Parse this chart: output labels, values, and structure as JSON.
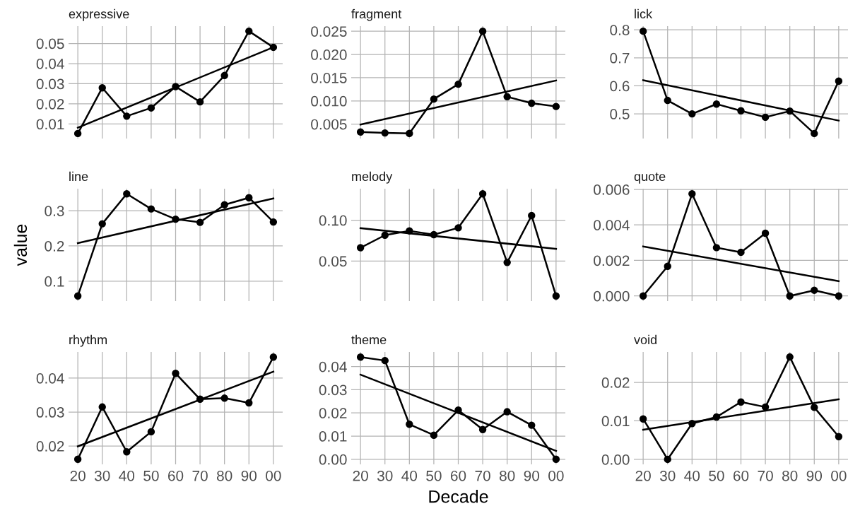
{
  "chart_data": [
    {
      "type": "line",
      "title": "expressive",
      "categories": [
        "20",
        "30",
        "40",
        "50",
        "60",
        "70",
        "80",
        "90",
        "00"
      ],
      "tick_labels": "y",
      "grid": true,
      "ylim": [
        0.0028,
        0.0586
      ],
      "yticks": [
        0.01,
        0.02,
        0.03,
        0.04,
        0.05
      ],
      "series": [
        {
          "color": "#000000",
          "marker": "circle",
          "values": [
            0.0053,
            0.028,
            0.0139,
            0.018,
            0.0286,
            0.021,
            0.0341,
            0.0561,
            0.0481
          ]
        },
        {
          "color": "#000000",
          "marker": "none",
          "x": [
            "20",
            "00"
          ],
          "values": [
            0.0082,
            0.0481
          ]
        }
      ]
    },
    {
      "type": "line",
      "title": "fragment",
      "categories": [
        "20",
        "30",
        "40",
        "50",
        "60",
        "70",
        "80",
        "90",
        "00"
      ],
      "tick_labels": "y",
      "grid": true,
      "ylim": [
        0.0019,
        0.0261
      ],
      "yticks": [
        0.005,
        {
          "value": 0.01,
          "label": "0.010"
        },
        0.015,
        {
          "value": 0.02,
          "label": "0.020"
        },
        0.025
      ],
      "series": [
        {
          "color": "#000000",
          "marker": "circle",
          "values": [
            0.0033,
            0.0031,
            0.003,
            0.0104,
            0.0136,
            0.025,
            0.0109,
            0.0095,
            0.0088
          ]
        },
        {
          "color": "#000000",
          "marker": "none",
          "x": [
            "20",
            "00"
          ],
          "values": [
            0.0049,
            0.0144
          ]
        }
      ]
    },
    {
      "type": "line",
      "title": "lick",
      "categories": [
        "20",
        "30",
        "40",
        "50",
        "60",
        "70",
        "80",
        "90",
        "00"
      ],
      "tick_labels": "y",
      "grid": true,
      "ylim": [
        0.412,
        0.813
      ],
      "yticks": [
        0.5,
        0.6,
        0.7,
        0.8
      ],
      "series": [
        {
          "color": "#000000",
          "marker": "circle",
          "values": [
            0.795,
            0.548,
            0.5,
            0.535,
            0.511,
            0.488,
            0.51,
            0.43,
            0.617
          ]
        },
        {
          "color": "#000000",
          "marker": "none",
          "x": [
            "20",
            "00"
          ],
          "values": [
            0.62,
            0.476
          ]
        }
      ]
    },
    {
      "type": "line",
      "title": "line",
      "ylabel": "value",
      "categories": [
        "20",
        "30",
        "40",
        "50",
        "60",
        "70",
        "80",
        "90",
        "00"
      ],
      "tick_labels": "y",
      "grid": true,
      "ylim": [
        0.0435,
        0.3625
      ],
      "yticks": [
        0.1,
        0.2,
        0.3
      ],
      "series": [
        {
          "color": "#000000",
          "marker": "circle",
          "values": [
            0.058,
            0.263,
            0.348,
            0.305,
            0.276,
            0.267,
            0.317,
            0.337,
            0.268
          ]
        },
        {
          "color": "#000000",
          "marker": "none",
          "x": [
            "20",
            "00"
          ],
          "values": [
            0.208,
            0.335
          ]
        }
      ]
    },
    {
      "type": "line",
      "title": "melody",
      "categories": [
        "20",
        "30",
        "40",
        "50",
        "60",
        "70",
        "80",
        "90",
        "00"
      ],
      "tick_labels": "y",
      "grid": true,
      "ylim": [
        0.001,
        0.1386
      ],
      "yticks": [
        0.05,
        {
          "value": 0.1,
          "label": "0.10"
        }
      ],
      "series": [
        {
          "color": "#000000",
          "marker": "circle",
          "values": [
            0.0663,
            0.0817,
            0.087,
            0.0823,
            0.0907,
            0.1323,
            0.0483,
            0.1057,
            0.0073
          ]
        },
        {
          "color": "#000000",
          "marker": "none",
          "x": [
            "20",
            "00"
          ],
          "values": [
            0.0903,
            0.065
          ]
        }
      ]
    },
    {
      "type": "line",
      "title": "quote",
      "categories": [
        "20",
        "30",
        "40",
        "50",
        "60",
        "70",
        "80",
        "90",
        "00"
      ],
      "tick_labels": "y",
      "grid": true,
      "ylim": [
        -0.00029,
        0.00604
      ],
      "yticks": [
        {
          "value": 0,
          "label": "0.000"
        },
        0.002,
        0.004,
        0.006
      ],
      "series": [
        {
          "color": "#000000",
          "marker": "circle",
          "values": [
            0,
            0.00167,
            0.00575,
            0.00272,
            0.00246,
            0.00353,
            0,
            0.00032,
            0
          ]
        },
        {
          "color": "#000000",
          "marker": "none",
          "x": [
            "20",
            "00"
          ],
          "values": [
            0.00279,
            0.00083
          ]
        }
      ]
    },
    {
      "type": "line",
      "title": "rhythm",
      "categories": [
        "20",
        "30",
        "40",
        "50",
        "60",
        "70",
        "80",
        "90",
        "00"
      ],
      "grid": true,
      "ylim": [
        0.0146,
        0.0477
      ],
      "yticks": [
        0.02,
        0.03,
        0.04
      ],
      "series": [
        {
          "color": "#000000",
          "marker": "circle",
          "values": [
            0.0161,
            0.0315,
            0.0183,
            0.0242,
            0.0414,
            0.0338,
            0.0341,
            0.0327,
            0.0462
          ]
        },
        {
          "color": "#000000",
          "marker": "none",
          "x": [
            "20",
            "00"
          ],
          "values": [
            0.0199,
            0.0419
          ]
        }
      ]
    },
    {
      "type": "line",
      "title": "theme",
      "xlabel": "Decade",
      "categories": [
        "20",
        "30",
        "40",
        "50",
        "60",
        "70",
        "80",
        "90",
        "00"
      ],
      "grid": true,
      "ylim": [
        -0.0022,
        0.0463
      ],
      "yticks": [
        {
          "value": 0,
          "label": "0.00"
        },
        0.01,
        0.02,
        0.03,
        0.04
      ],
      "series": [
        {
          "color": "#000000",
          "marker": "circle",
          "values": [
            0.0441,
            0.0426,
            0.0151,
            0.0104,
            0.0212,
            0.0128,
            0.0205,
            0.0147,
            0
          ]
        },
        {
          "color": "#000000",
          "marker": "none",
          "x": [
            "20",
            "00"
          ],
          "values": [
            0.0365,
            0.0036
          ]
        }
      ]
    },
    {
      "type": "line",
      "title": "void",
      "categories": [
        "20",
        "30",
        "40",
        "50",
        "60",
        "70",
        "80",
        "90",
        "00"
      ],
      "grid": true,
      "ylim": [
        -0.0013,
        0.0279
      ],
      "yticks": [
        {
          "value": 0,
          "label": "0.00"
        },
        0.01,
        0.02
      ],
      "series": [
        {
          "color": "#000000",
          "marker": "circle",
          "values": [
            0.0105,
            0,
            0.0093,
            0.011,
            0.0149,
            0.0136,
            0.0266,
            0.0135,
            0.0059
          ]
        },
        {
          "color": "#000000",
          "marker": "none",
          "x": [
            "20",
            "00"
          ],
          "values": [
            0.0077,
            0.0156
          ]
        }
      ]
    }
  ]
}
